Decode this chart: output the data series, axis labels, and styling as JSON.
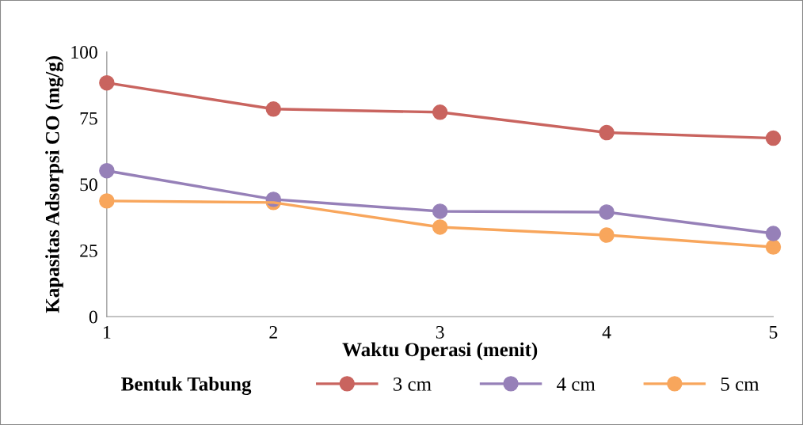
{
  "chart_data": {
    "type": "line",
    "xlabel": "Waktu Operasi (menit)",
    "ylabel": "Kapasitas Adsorpsi CO (mg/g)",
    "legend_title": "Bentuk Tabung",
    "legend": "bottom",
    "marker": "circle",
    "line_style": "solid",
    "grid": false,
    "x": [
      1,
      2,
      3,
      4,
      5
    ],
    "xlim": [
      1,
      5
    ],
    "xticks": [
      1,
      2,
      3,
      4,
      5
    ],
    "ylim": [
      0,
      100
    ],
    "yticks": [
      0,
      25,
      50,
      75,
      100
    ],
    "series": [
      {
        "name": "3 cm",
        "color": "#c9645f",
        "values": [
          88.3,
          78.4,
          77.2,
          69.5,
          67.4
        ]
      },
      {
        "name": "4 cm",
        "color": "#9680b8",
        "values": [
          55.1,
          44.3,
          39.8,
          39.5,
          31.4
        ]
      },
      {
        "name": "5 cm",
        "color": "#f8a65c",
        "values": [
          43.7,
          43.1,
          33.8,
          30.8,
          26.3
        ]
      }
    ]
  }
}
